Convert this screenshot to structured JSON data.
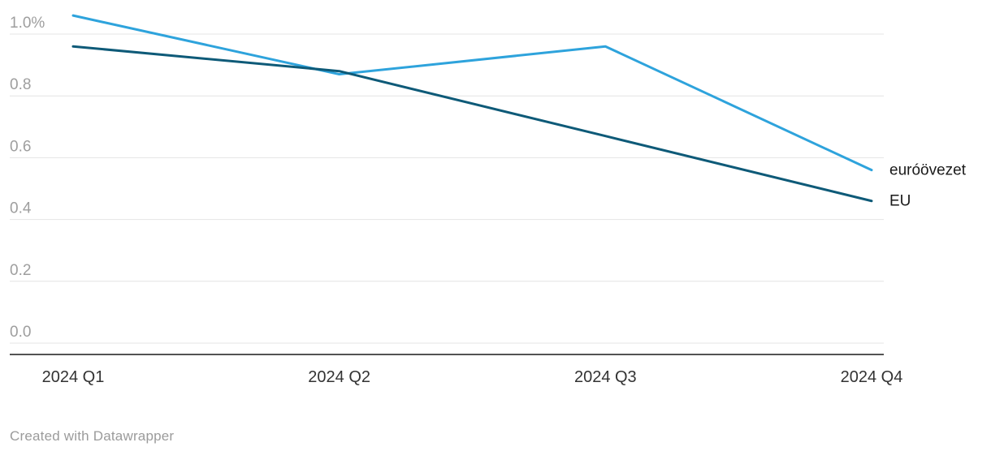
{
  "chart_data": {
    "type": "line",
    "title": "",
    "categories": [
      "2024 Q1",
      "2024 Q2",
      "2024 Q3",
      "2024 Q4"
    ],
    "series": [
      {
        "name": "euróövezet",
        "color": "#2ea3dc",
        "values": [
          1.06,
          0.87,
          0.96,
          0.56
        ]
      },
      {
        "name": "EU",
        "color": "#0e5a78",
        "values": [
          0.96,
          0.88,
          0.67,
          0.46
        ]
      }
    ],
    "y_ticks": [
      {
        "label": "1.0%",
        "value": 1.0
      },
      {
        "label": "0.8",
        "value": 0.8
      },
      {
        "label": "0.6",
        "value": 0.6
      },
      {
        "label": "0.4",
        "value": 0.4
      },
      {
        "label": "0.2",
        "value": 0.2
      },
      {
        "label": "0.0",
        "value": 0.0
      }
    ],
    "ylim": [
      0,
      1.1
    ],
    "grid": true,
    "legend_position": "line-end-labels",
    "unit": "%"
  },
  "colors": {
    "background": "#ffffff",
    "grid": "#e4e4e4",
    "axis": "#1a1a1a",
    "y_tick_label": "#9e9e9e",
    "x_tick_label": "#333333",
    "series_label": "#1a1a1a"
  },
  "footer": {
    "text": "Created with Datawrapper"
  }
}
